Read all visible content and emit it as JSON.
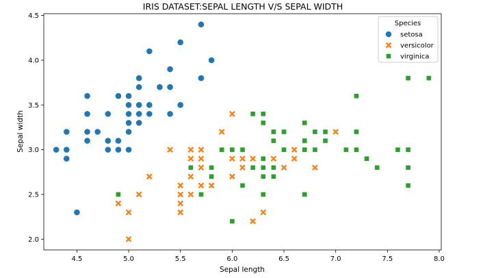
{
  "chart_data": {
    "type": "scatter",
    "title": "IRIS DATASET:SEPAL LENGTH V/S SEPAL WIDTH",
    "xlabel": "Sepal length",
    "ylabel": "Sepal width",
    "xlim": [
      4.18,
      8.02
    ],
    "ylim": [
      1.88,
      4.52
    ],
    "xticks": [
      "4.5",
      "5.0",
      "5.5",
      "6.0",
      "6.5",
      "7.0",
      "7.5",
      "8.0"
    ],
    "xtick_values": [
      4.5,
      5.0,
      5.5,
      6.0,
      6.5,
      7.0,
      7.5,
      8.0
    ],
    "yticks": [
      "2.0",
      "2.5",
      "3.0",
      "3.5",
      "4.0",
      "4.5"
    ],
    "ytick_values": [
      2.0,
      2.5,
      3.0,
      3.5,
      4.0,
      4.5
    ],
    "grid": false,
    "legend": {
      "title": "Species",
      "placement": "top-right"
    },
    "series": [
      {
        "name": "setosa",
        "marker": "circle",
        "color": "#1f77b4",
        "points": [
          [
            5.1,
            3.5
          ],
          [
            4.9,
            3.0
          ],
          [
            4.7,
            3.2
          ],
          [
            4.6,
            3.1
          ],
          [
            5.0,
            3.6
          ],
          [
            5.4,
            3.9
          ],
          [
            4.6,
            3.4
          ],
          [
            5.0,
            3.4
          ],
          [
            4.4,
            2.9
          ],
          [
            4.9,
            3.1
          ],
          [
            5.4,
            3.7
          ],
          [
            4.8,
            3.4
          ],
          [
            4.8,
            3.0
          ],
          [
            4.3,
            3.0
          ],
          [
            5.8,
            4.0
          ],
          [
            5.7,
            4.4
          ],
          [
            5.4,
            3.9
          ],
          [
            5.1,
            3.5
          ],
          [
            5.7,
            3.8
          ],
          [
            5.1,
            3.8
          ],
          [
            5.4,
            3.4
          ],
          [
            5.1,
            3.7
          ],
          [
            4.6,
            3.6
          ],
          [
            5.1,
            3.3
          ],
          [
            4.8,
            3.4
          ],
          [
            5.0,
            3.0
          ],
          [
            5.0,
            3.4
          ],
          [
            5.2,
            3.5
          ],
          [
            5.2,
            3.4
          ],
          [
            4.7,
            3.2
          ],
          [
            4.8,
            3.1
          ],
          [
            5.4,
            3.4
          ],
          [
            5.2,
            4.1
          ],
          [
            5.5,
            4.2
          ],
          [
            4.9,
            3.1
          ],
          [
            5.0,
            3.2
          ],
          [
            5.5,
            3.5
          ],
          [
            4.9,
            3.6
          ],
          [
            4.4,
            3.0
          ],
          [
            5.1,
            3.4
          ],
          [
            5.0,
            3.5
          ],
          [
            4.5,
            2.3
          ],
          [
            4.4,
            3.2
          ],
          [
            5.0,
            3.5
          ],
          [
            5.1,
            3.8
          ],
          [
            4.8,
            3.0
          ],
          [
            5.1,
            3.8
          ],
          [
            4.6,
            3.2
          ],
          [
            5.3,
            3.7
          ],
          [
            5.0,
            3.3
          ]
        ]
      },
      {
        "name": "versicolor",
        "marker": "x",
        "color": "#ff7f0e",
        "points": [
          [
            7.0,
            3.2
          ],
          [
            6.4,
            3.2
          ],
          [
            6.9,
            3.1
          ],
          [
            5.5,
            2.3
          ],
          [
            6.5,
            2.8
          ],
          [
            5.7,
            2.8
          ],
          [
            6.3,
            3.3
          ],
          [
            4.9,
            2.4
          ],
          [
            6.6,
            2.9
          ],
          [
            5.2,
            2.7
          ],
          [
            5.0,
            2.0
          ],
          [
            5.9,
            3.0
          ],
          [
            6.0,
            2.2
          ],
          [
            6.1,
            2.9
          ],
          [
            5.6,
            2.9
          ],
          [
            6.7,
            3.1
          ],
          [
            5.6,
            3.0
          ],
          [
            5.8,
            2.7
          ],
          [
            6.2,
            2.2
          ],
          [
            5.6,
            2.5
          ],
          [
            5.9,
            3.2
          ],
          [
            6.1,
            2.8
          ],
          [
            6.3,
            2.5
          ],
          [
            6.1,
            2.8
          ],
          [
            6.4,
            2.9
          ],
          [
            6.6,
            3.0
          ],
          [
            6.8,
            2.8
          ],
          [
            6.7,
            3.0
          ],
          [
            6.0,
            2.9
          ],
          [
            5.7,
            2.6
          ],
          [
            5.5,
            2.4
          ],
          [
            5.5,
            2.4
          ],
          [
            5.8,
            2.7
          ],
          [
            6.0,
            2.7
          ],
          [
            5.4,
            3.0
          ],
          [
            6.0,
            3.4
          ],
          [
            6.7,
            3.1
          ],
          [
            6.3,
            2.3
          ],
          [
            5.6,
            3.0
          ],
          [
            5.5,
            2.5
          ],
          [
            5.5,
            2.6
          ],
          [
            6.1,
            3.0
          ],
          [
            5.8,
            2.6
          ],
          [
            5.0,
            2.3
          ],
          [
            5.6,
            2.7
          ],
          [
            5.7,
            3.0
          ],
          [
            5.7,
            2.9
          ],
          [
            6.2,
            2.9
          ],
          [
            5.1,
            2.5
          ],
          [
            5.7,
            2.8
          ]
        ]
      },
      {
        "name": "virginica",
        "marker": "square",
        "color": "#2ca02c",
        "points": [
          [
            6.3,
            3.3
          ],
          [
            5.8,
            2.7
          ],
          [
            7.1,
            3.0
          ],
          [
            6.3,
            2.9
          ],
          [
            6.5,
            3.0
          ],
          [
            7.6,
            3.0
          ],
          [
            4.9,
            2.5
          ],
          [
            7.3,
            2.9
          ],
          [
            6.7,
            2.5
          ],
          [
            7.2,
            3.6
          ],
          [
            6.5,
            3.2
          ],
          [
            6.4,
            2.7
          ],
          [
            6.8,
            3.0
          ],
          [
            5.7,
            2.5
          ],
          [
            5.8,
            2.8
          ],
          [
            6.4,
            3.2
          ],
          [
            6.5,
            3.0
          ],
          [
            7.7,
            3.8
          ],
          [
            7.7,
            2.6
          ],
          [
            6.0,
            2.2
          ],
          [
            6.9,
            3.2
          ],
          [
            5.6,
            2.8
          ],
          [
            7.7,
            2.8
          ],
          [
            6.3,
            2.7
          ],
          [
            6.7,
            3.3
          ],
          [
            7.2,
            3.2
          ],
          [
            6.2,
            2.8
          ],
          [
            6.1,
            3.0
          ],
          [
            6.4,
            2.8
          ],
          [
            7.2,
            3.0
          ],
          [
            7.4,
            2.8
          ],
          [
            7.9,
            3.8
          ],
          [
            6.4,
            2.8
          ],
          [
            6.3,
            2.8
          ],
          [
            6.1,
            2.6
          ],
          [
            7.7,
            3.0
          ],
          [
            6.3,
            3.4
          ],
          [
            6.4,
            3.1
          ],
          [
            6.0,
            3.0
          ],
          [
            6.9,
            3.1
          ],
          [
            6.7,
            3.1
          ],
          [
            6.9,
            3.1
          ],
          [
            5.8,
            2.7
          ],
          [
            6.8,
            3.2
          ],
          [
            6.7,
            3.3
          ],
          [
            6.7,
            3.0
          ],
          [
            6.3,
            2.5
          ],
          [
            6.5,
            3.0
          ],
          [
            6.2,
            3.4
          ],
          [
            5.9,
            3.0
          ]
        ]
      }
    ]
  }
}
